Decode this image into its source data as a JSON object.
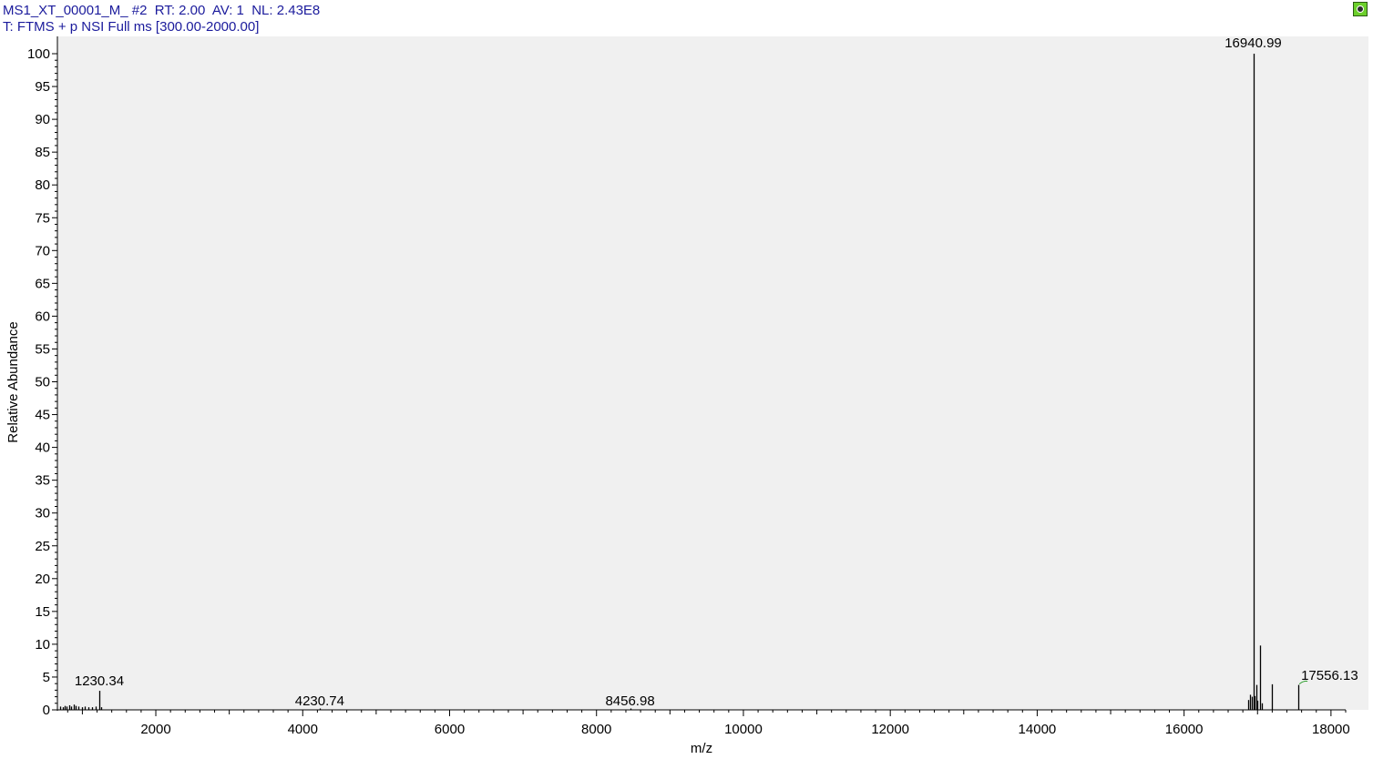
{
  "header": {
    "line1": "MS1_XT_00001_M_ #2  RT: 2.00  AV: 1  NL: 2.43E8",
    "line2": "T: FTMS + p NSI Full ms [300.00-2000.00]"
  },
  "icons": {
    "corner": "spectrum-view-icon"
  },
  "colors": {
    "plot_bg": "#f0f0f0",
    "header_text": "#1b1b9c",
    "peak": "#000000",
    "annotation_connector": "#2e9e2e"
  },
  "chart_data": {
    "type": "bar",
    "xlabel": "m/z",
    "ylabel": "Relative Abundance",
    "xlim": [
      660,
      18200
    ],
    "ylim": [
      0,
      100
    ],
    "x_ticks": [
      2000,
      4000,
      6000,
      8000,
      10000,
      12000,
      14000,
      16000,
      18000
    ],
    "y_ticks": [
      0,
      5,
      10,
      15,
      20,
      25,
      30,
      35,
      40,
      45,
      50,
      55,
      60,
      65,
      70,
      75,
      80,
      85,
      90,
      95,
      100
    ],
    "labeled_peaks": [
      {
        "mz": 16940.99,
        "label": "16940.99",
        "intensity": 100
      },
      {
        "mz": 17556.13,
        "label": "17556.13",
        "intensity": 3.8
      },
      {
        "mz": 1230.34,
        "label": "1230.34",
        "intensity": 2.9
      },
      {
        "mz": 4230.74,
        "label": "4230.74",
        "intensity": 0.2
      },
      {
        "mz": 8456.98,
        "label": "8456.98",
        "intensity": 0.15
      }
    ],
    "peaks": [
      {
        "mz": 700,
        "intensity": 0.5
      },
      {
        "mz": 730,
        "intensity": 0.4
      },
      {
        "mz": 760,
        "intensity": 0.6
      },
      {
        "mz": 790,
        "intensity": 0.5
      },
      {
        "mz": 820,
        "intensity": 0.7
      },
      {
        "mz": 850,
        "intensity": 0.5
      },
      {
        "mz": 880,
        "intensity": 0.8
      },
      {
        "mz": 910,
        "intensity": 0.6
      },
      {
        "mz": 950,
        "intensity": 0.5
      },
      {
        "mz": 990,
        "intensity": 0.4
      },
      {
        "mz": 1030,
        "intensity": 0.5
      },
      {
        "mz": 1080,
        "intensity": 0.4
      },
      {
        "mz": 1130,
        "intensity": 0.4
      },
      {
        "mz": 1180,
        "intensity": 0.5
      },
      {
        "mz": 1230.34,
        "intensity": 2.9
      },
      {
        "mz": 1260,
        "intensity": 0.4
      },
      {
        "mz": 4230.74,
        "intensity": 0.2
      },
      {
        "mz": 8456.98,
        "intensity": 0.15
      },
      {
        "mz": 16870,
        "intensity": 1.5
      },
      {
        "mz": 16900,
        "intensity": 2.3
      },
      {
        "mz": 16920,
        "intensity": 2.0
      },
      {
        "mz": 16940.99,
        "intensity": 100
      },
      {
        "mz": 16960,
        "intensity": 2.1
      },
      {
        "mz": 16980,
        "intensity": 3.8
      },
      {
        "mz": 17000,
        "intensity": 1.4
      },
      {
        "mz": 17040,
        "intensity": 9.8
      },
      {
        "mz": 17060,
        "intensity": 1.0
      },
      {
        "mz": 17190,
        "intensity": 3.9
      },
      {
        "mz": 17556.13,
        "intensity": 3.8
      }
    ]
  }
}
